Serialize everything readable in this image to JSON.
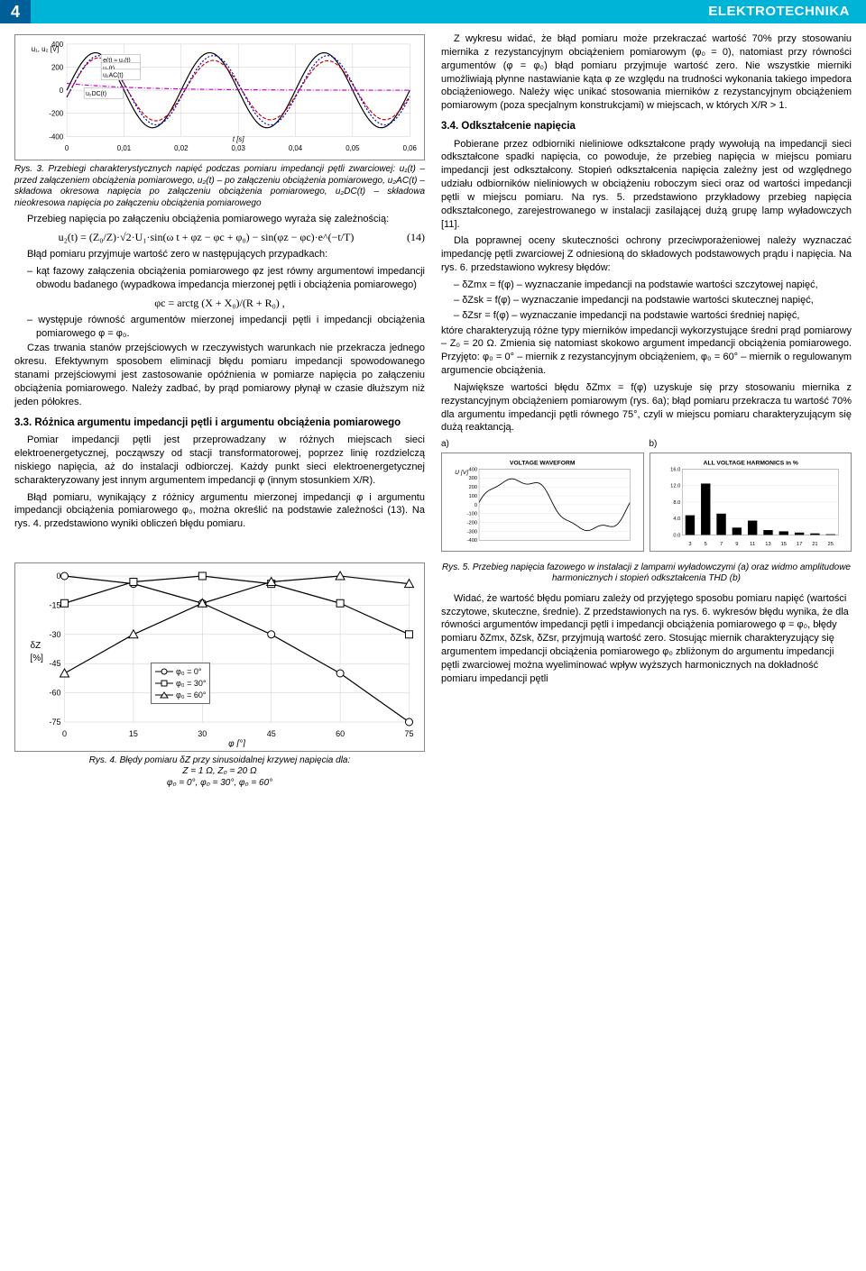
{
  "header": {
    "page_number": "4",
    "title": "ELEKTROTECHNIKA"
  },
  "fig3": {
    "caption": "Rys. 3. Przebiegi charakterystycznych napięć podczas pomiaru impedancji pętli zwarciowej: u₁(t) – przed załączeniem obciążenia pomiarowego, u₂(t) – po załączeniu obciążenia pomiarowego, u₂AC(t) – składowa okresowa napięcia po załączeniu obciążenia pomiarowego, u₂DC(t) – składowa nieokresowa napięcia po załączeniu obciążenia pomiarowego",
    "y_label": "u₁, u₂ [V]",
    "x_label": "t [s]",
    "y_ticks": [
      "400",
      "200",
      "0",
      "-200",
      "-400"
    ],
    "x_ticks": [
      "0",
      "0,01",
      "0,02",
      "0,03",
      "0,04",
      "0,05",
      "0,06"
    ],
    "series": {
      "u1": {
        "label": "e(t) ≈ u₁(t)",
        "color": "#000000"
      },
      "u2": {
        "label": "u₂(t)",
        "color": "#cc0000"
      },
      "u2ac": {
        "label": "u₂AC(t)",
        "color": "#0000cc"
      },
      "u2dc": {
        "label": "u₂DC(t)",
        "color": "#cc00cc"
      }
    }
  },
  "left_col": {
    "p1": "Przebieg napięcia po załączeniu obciążenia pomiarowego wyraża się zależnością:",
    "eq14": "u₂(t) = (Z₀/Z)·√2·U₁·sin(ω t + φz − φc + φ₀) − sin(φz − φc)·e^(−t/T)",
    "eq14_num": "(14)",
    "p2": "Błąd pomiaru przyjmuje wartość zero w następujących przypadkach:",
    "li1": "kąt fazowy załączenia obciążenia pomiarowego φz jest równy argumentowi impedancji obwodu badanego (wypadkowa impedancja mierzonej pętli i obciążenia pomiarowego)",
    "eq_arctg": "φc = arctg (X + X₀)/(R + R₀) ,",
    "li2": "występuje równość argumentów mierzonej impedancji pętli i impedancji obciążenia pomiarowego φ = φ₀.",
    "p3": "Czas trwania stanów przejściowych w rzeczywistych warunkach nie przekracza jednego okresu. Efektywnym sposobem eliminacji błędu pomiaru impedancji spowodowanego stanami przejściowymi jest zastosowanie opóźnienia w pomiarze napięcia po załączeniu obciążenia pomiarowego. Należy zadbać, by prąd pomiarowy płynął w czasie dłuższym niż jeden półokres.",
    "h33": "3.3. Różnica argumentu impedancji pętli i argumentu obciążenia pomiarowego",
    "p4": "Pomiar impedancji pętli jest przeprowadzany w różnych miejscach sieci elektroenergetycznej, począwszy od stacji transformatorowej, poprzez linię rozdzielczą niskiego napięcia, aż do instalacji odbiorczej. Każdy punkt sieci elektroenergetycznej scharakteryzowany jest innym argumentem impedancji φ (innym stosunkiem X/R).",
    "p5": "Błąd pomiaru, wynikający z różnicy argumentu mierzonej impedancji φ i argumentu impedancji obciążenia pomiarowego φ₀, można określić na podstawie zależności (13). Na rys. 4. przedstawiono wyniki obliczeń błędu pomiaru."
  },
  "fig4": {
    "y_label": "δZ [%]",
    "x_label": "φ [°]",
    "y_ticks": [
      "0",
      "-15",
      "-30",
      "-45",
      "-60",
      "-75"
    ],
    "x_ticks": [
      "0",
      "15",
      "30",
      "45",
      "60",
      "75"
    ],
    "legend": [
      "φ₀ = 0°",
      "φ₀ = 30°",
      "φ₀ = 60°"
    ],
    "series_colors": [
      "#000",
      "#000",
      "#000"
    ],
    "markers": [
      "circle",
      "square",
      "triangle"
    ],
    "curves": {
      "s1": [
        0,
        -4,
        -14,
        -30,
        -50,
        -75
      ],
      "s2": [
        -14,
        -3,
        0,
        -4,
        -14,
        -30
      ],
      "s3": [
        -50,
        -30,
        -14,
        -3,
        0,
        -4
      ]
    },
    "caption": "Rys. 4. Błędy pomiaru δZ przy sinusoidalnej krzywej napięcia dla:\nZ = 1 Ω, Z₀ = 20 Ω\nφ₀ = 0°, φ₀ = 30°, φ₀ = 60°"
  },
  "right_col": {
    "p1": "Z wykresu widać, że błąd pomiaru może przekraczać wartość 70% przy stosowaniu miernika z rezystancyjnym obciążeniem pomiarowym (φ₀ = 0), natomiast przy równości argumentów (φ = φ₀) błąd pomiaru przyjmuje wartość zero. Nie wszystkie mierniki umożliwiają płynne nastawianie kąta φ ze względu na trudności wykonania takiego impedora obciążeniowego. Należy więc unikać stosowania mierników z rezystancyjnym obciążeniem pomiarowym (poza specjalnym konstrukcjami) w miejscach, w których X/R > 1.",
    "h34": "3.4. Odkształcenie napięcia",
    "p2": "Pobierane przez odbiorniki nieliniowe odkształcone prądy wywołują na impedancji sieci odkształcone spadki napięcia, co powoduje, że przebieg napięcia w miejscu pomiaru impedancji jest odkształcony. Stopień odkształcenia napięcia zależny jest od względnego udziału odbiorników nieliniowych w obciążeniu roboczym sieci oraz od wartości impedancji pętli w miejscu pomiaru. Na rys. 5. przedstawiono przykładowy przebieg napięcia odkształconego, zarejestrowanego w instalacji zasilającej dużą grupę lamp wyładowczych [11].",
    "p3": "Dla poprawnej oceny skuteczności ochrony przeciwporażeniowej należy wyznaczać impedancję pętli zwarciowej Z odniesioną do składowych podstawowych prądu i napięcia. Na rys. 6. przedstawiono wykresy błędów:",
    "li1": "δZmx = f(φ) – wyznaczanie impedancji na podstawie wartości szczytowej napięć,",
    "li2": "δZsk = f(φ) – wyznaczanie impedancji na podstawie wartości skutecznej napięć,",
    "li3": "δZsr = f(φ) – wyznaczanie impedancji na podstawie wartości średniej napięć,",
    "p4": "które charakteryzują różne typy mierników impedancji wykorzystujące średni prąd pomiarowy – Z₀ = 20 Ω. Zmienia się natomiast skokowo argument impedancji obciążenia pomiarowego. Przyjęto: φ₀ = 0° – miernik z rezystancyjnym obciążeniem, φ₀ = 60° – miernik o regulowanym argumencie obciążenia.",
    "p5": "Największe wartości błędu δZmx = f(φ) uzyskuje się przy stosowaniu miernika z rezystancyjnym obciążeniem pomiarowym (rys. 6a); błąd pomiaru przekracza tu wartość 70% dla argumentu impedancji pętli równego 75°, czyli w miejscu pomiaru charakteryzującym się dużą reaktancją."
  },
  "fig5": {
    "label_a": "a)",
    "label_b": "b)",
    "title_a": "VOLTAGE WAVEFORM",
    "title_b": "ALL VOLTAGE HARMONICS in %",
    "y_label_a": "U [V]",
    "y_ticks_a": [
      "400",
      "300",
      "200",
      "100",
      "0",
      "-100",
      "-200",
      "-300",
      "-400"
    ],
    "y_ticks_b": [
      "16.0",
      "12.0",
      "8.0",
      "4.0",
      "0.0"
    ],
    "x_ticks_b": [
      "3",
      "5",
      "7",
      "9",
      "11",
      "13",
      "15",
      "17",
      "21",
      "25"
    ],
    "bars_b": [
      4.8,
      12.5,
      5.2,
      1.8,
      3.5,
      1.2,
      0.9,
      0.6,
      0.4,
      0.2
    ],
    "caption": "Rys. 5. Przebieg napięcia fazowego w instalacji z lampami wyładowczymi (a) oraz widmo amplitudowe harmonicznych i stopień odkształcenia THD (b)",
    "p_bottom": "Widać, że wartość błędu pomiaru zależy od przyjętego sposobu pomiaru napięć (wartości szczytowe, skuteczne, średnie). Z przedstawionych na rys. 6. wykresów błędu wynika, że dla równości argumentów impedancji pętli i impedancji obciążenia pomiarowego φ = φ₀, błędy pomiaru δZmx, δZsk, δZsr, przyjmują wartość zero. Stosując miernik charakteryzujący się argumentem impedancji obciążenia pomiarowego φ₀ zbliżonym do argumentu impedancji pętli zwarciowej można wyeliminować wpływ wyższych harmonicznych na dokładność pomiaru impedancji pętli"
  }
}
